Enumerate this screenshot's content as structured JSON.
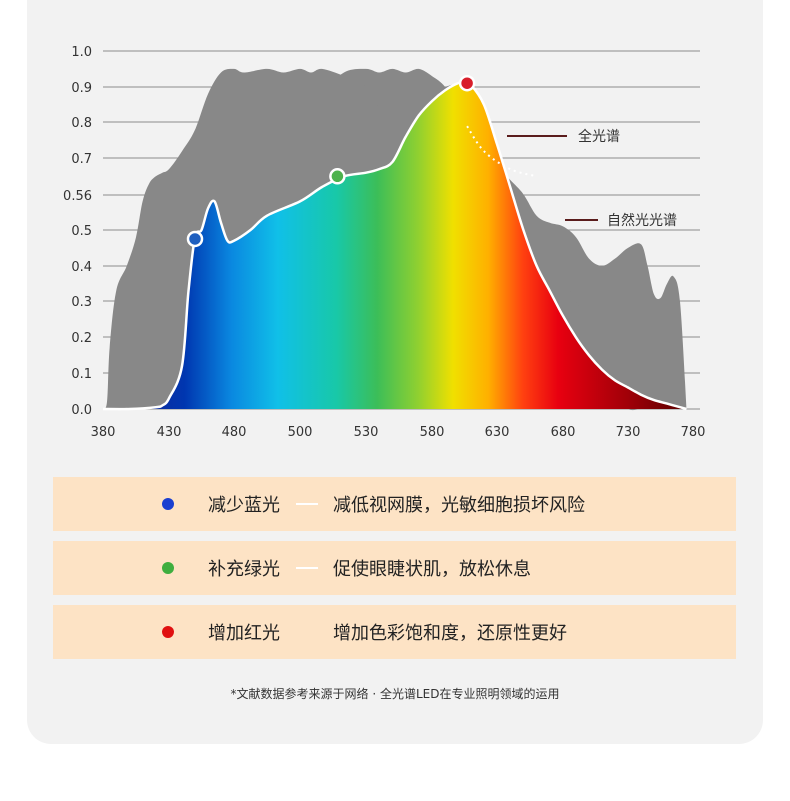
{
  "chart_data": {
    "type": "area",
    "xlim": [
      380,
      780
    ],
    "ylim": [
      0,
      1.0
    ],
    "x_ticks": [
      "380",
      "430",
      "480",
      "500",
      "530",
      "580",
      "630",
      "680",
      "730",
      "780"
    ],
    "y_ticks": [
      "0.0",
      "0.1",
      "0.2",
      "0.3",
      "0.4",
      "0.5",
      "0.56",
      "0.7",
      "0.8",
      "0.9",
      "1.0"
    ],
    "grid": true,
    "series": [
      {
        "name": "全光谱",
        "color": "#888888",
        "x": [
          380,
          383,
          385,
          390,
          398,
          405,
          410,
          415,
          420,
          425,
          430,
          440,
          450,
          460,
          470,
          480,
          483,
          490,
          495,
          500,
          505,
          510,
          520,
          530,
          540,
          550,
          560,
          570,
          575,
          580,
          590,
          600,
          605,
          610,
          620,
          625,
          630,
          635,
          640,
          645,
          650,
          655,
          660,
          665,
          670,
          675,
          680,
          690,
          700,
          705,
          710,
          715,
          720,
          730,
          740,
          745,
          750,
          755,
          760,
          765,
          770,
          775
        ],
        "y": [
          0.0,
          0.02,
          0.17,
          0.33,
          0.4,
          0.48,
          0.58,
          0.63,
          0.65,
          0.66,
          0.67,
          0.72,
          0.78,
          0.88,
          0.94,
          0.95,
          0.94,
          0.95,
          0.94,
          0.95,
          0.94,
          0.95,
          0.93,
          0.9,
          0.84,
          0.8,
          0.8,
          0.85,
          0.88,
          0.89,
          0.9,
          0.91,
          0.905,
          0.88,
          0.79,
          0.72,
          0.63,
          0.58,
          0.54,
          0.51,
          0.48,
          0.45,
          0.41,
          0.39,
          0.39,
          0.38,
          0.37,
          0.3,
          0.26,
          0.25,
          0.18,
          0.1,
          0.04,
          0.0,
          0.0,
          0.0,
          0.0,
          0.0,
          0.0,
          0.0,
          0.0,
          0.0
        ]
      },
      {
        "name": "自然光光谱",
        "color": "#888888",
        "x": [
          380,
          390,
          400,
          410,
          420,
          430,
          440,
          450,
          460,
          470,
          480,
          490,
          500,
          510,
          520,
          530,
          540,
          550,
          560,
          570,
          580,
          590,
          600,
          610,
          620,
          630,
          640,
          650,
          660,
          670,
          680,
          690,
          700,
          710,
          720,
          730,
          740,
          745,
          750,
          755,
          760,
          765,
          770,
          775
        ],
        "y": [
          0.0,
          0.02,
          0.17,
          0.33,
          0.4,
          0.48,
          0.58,
          0.63,
          0.65,
          0.66,
          0.67,
          0.72,
          0.78,
          0.88,
          0.94,
          0.95,
          0.94,
          0.95,
          0.94,
          0.95,
          0.93,
          0.9,
          0.84,
          0.8,
          0.76,
          0.68,
          0.64,
          0.6,
          0.54,
          0.52,
          0.51,
          0.48,
          0.42,
          0.4,
          0.42,
          0.45,
          0.46,
          0.4,
          0.32,
          0.31,
          0.35,
          0.37,
          0.3,
          0.0
        ]
      }
    ],
    "led_curve": {
      "x": [
        380,
        400,
        420,
        425,
        430,
        440,
        445,
        450,
        455,
        460,
        465,
        470,
        475,
        480,
        485,
        490,
        500,
        510,
        520,
        530,
        540,
        550,
        560,
        570,
        580,
        590,
        600,
        605,
        610,
        620,
        630,
        640,
        650,
        660,
        670,
        680,
        690,
        700,
        710,
        720,
        730,
        740,
        750,
        760,
        770,
        775
      ],
      "y": [
        0.0,
        0.0,
        0.005,
        0.01,
        0.03,
        0.12,
        0.33,
        0.48,
        0.5,
        0.56,
        0.58,
        0.52,
        0.47,
        0.47,
        0.5,
        0.54,
        0.58,
        0.62,
        0.65,
        0.66,
        0.67,
        0.69,
        0.76,
        0.82,
        0.86,
        0.89,
        0.91,
        0.91,
        0.905,
        0.85,
        0.74,
        0.62,
        0.5,
        0.4,
        0.33,
        0.26,
        0.2,
        0.15,
        0.11,
        0.08,
        0.06,
        0.04,
        0.025,
        0.015,
        0.005,
        0.0
      ]
    },
    "markers": [
      {
        "x": 450,
        "y": 0.475,
        "color": "#1f5fbf"
      },
      {
        "x": 517,
        "y": 0.65,
        "color": "#4db24d"
      },
      {
        "x": 607,
        "y": 0.91,
        "color": "#d81e2a"
      }
    ],
    "annotations": [
      {
        "text": "全光谱"
      },
      {
        "text": "自然光光谱"
      }
    ]
  },
  "benefits": [
    {
      "label": "减少蓝光",
      "description": "减低视网膜，光敏细胞损坏风险",
      "dot_color": "#1a3fd0",
      "show_dash": true
    },
    {
      "label": "补充绿光",
      "description": "促使眼睫状肌，放松休息",
      "dot_color": "#3fae3f",
      "show_dash": true
    },
    {
      "label": "增加红光",
      "description": "增加色彩饱和度，还原性更好",
      "dot_color": "#e01010",
      "show_dash": false
    }
  ],
  "footnote": "*文献数据参考来源于网络 · 全光谱LED在专业照明领域的运用"
}
